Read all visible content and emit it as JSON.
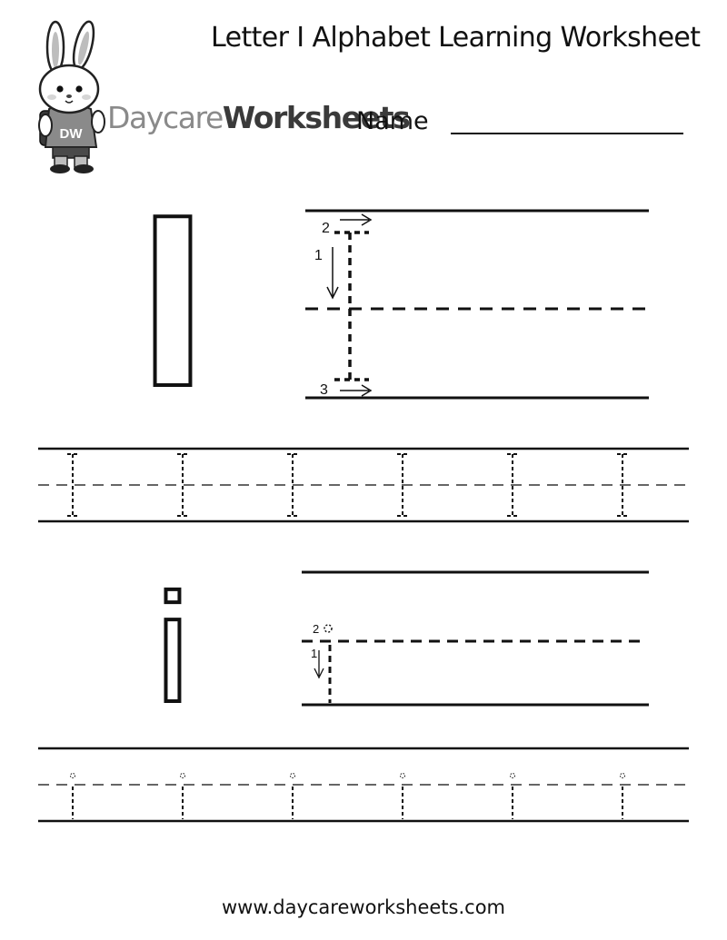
{
  "worksheet": {
    "title": "Letter I Alphabet Learning Worksheet",
    "brand": {
      "part1": "Daycare",
      "part2": "Worksheets"
    },
    "mascot_badge": "DW",
    "name_label": "Name",
    "footer_url": "www.daycareworksheets.com"
  },
  "uppercase_section": {
    "letter": "I",
    "stroke_numbers": [
      "1",
      "2",
      "3"
    ],
    "practice_count": 6
  },
  "lowercase_section": {
    "letter": "i",
    "stroke_numbers": [
      "1",
      "2"
    ],
    "practice_count": 6
  },
  "icons": {
    "mascot": "bunny-mascot-icon",
    "arrows": "stroke-direction-arrow-icon"
  }
}
